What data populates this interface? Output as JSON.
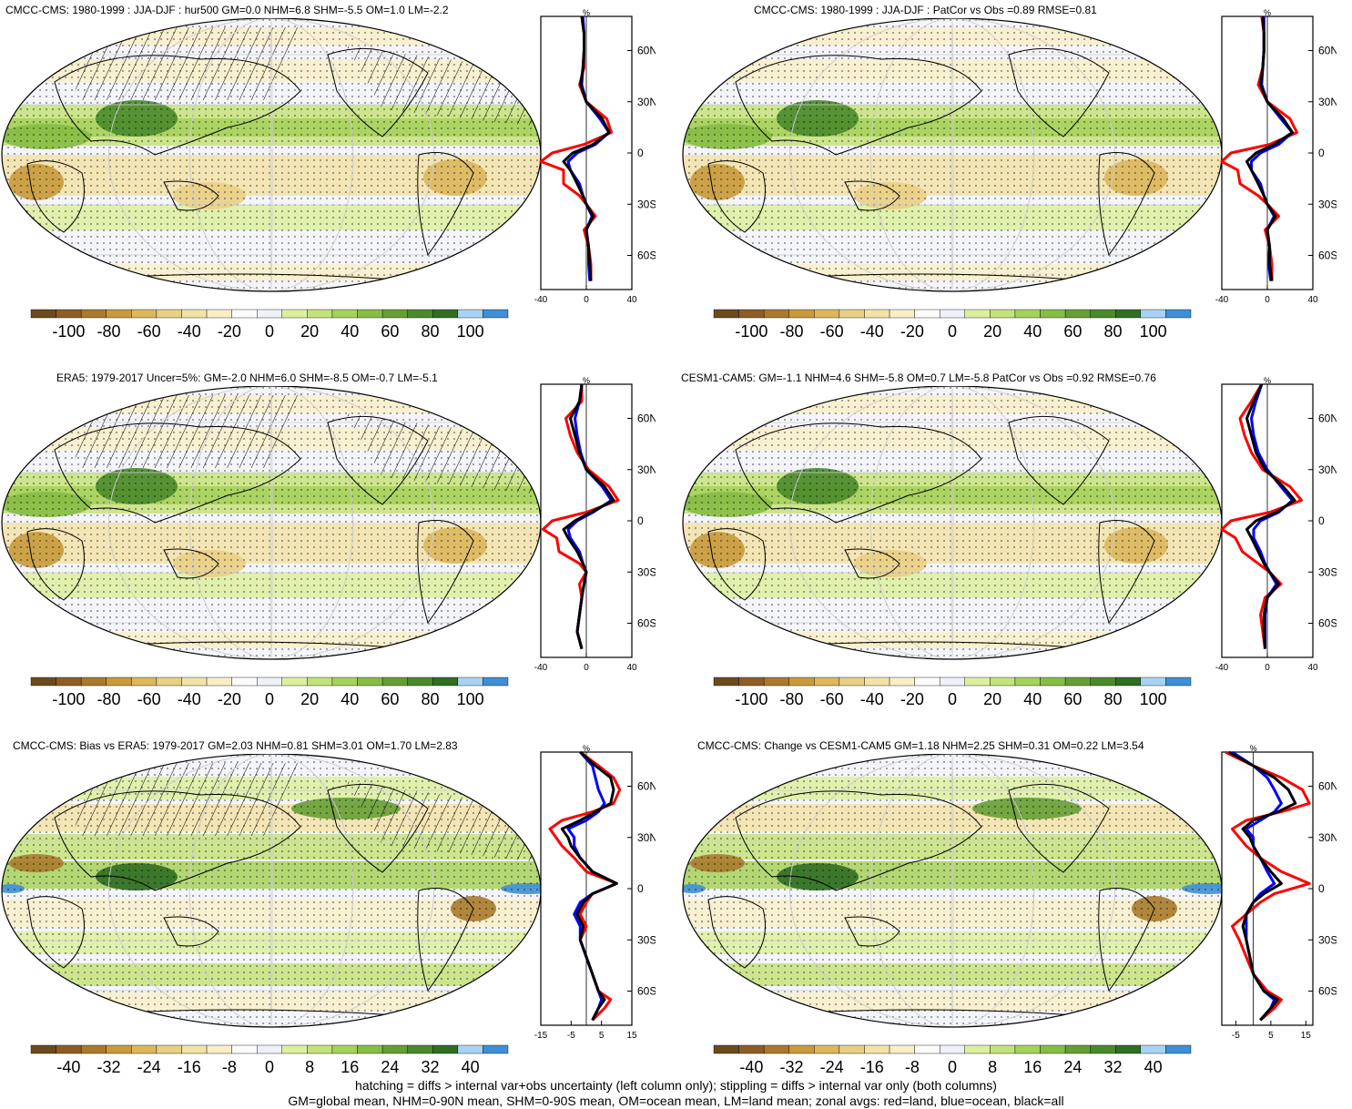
{
  "panels": [
    {
      "id": "p1",
      "title": "CMCC-CMS: 1980-1999 : JJA-DJF : hur500 GM=0.0 NHM=6.8 SHM=-5.5 OM=1.0 LM=-2.2",
      "hatch": true,
      "cbar_labels": [
        "-100",
        "-80",
        "-60",
        "-40",
        "-20",
        "0",
        "20",
        "40",
        "60",
        "80",
        "100"
      ],
      "zonal_xticks": [
        "-40",
        "0",
        "40"
      ],
      "zonal_xlim": [
        -40,
        40
      ]
    },
    {
      "id": "p2",
      "title": "CMCC-CMS: 1980-1999 : JJA-DJF : PatCor vs Obs =0.89 RMSE=0.81",
      "hatch": false,
      "cbar_labels": [
        "-100",
        "-80",
        "-60",
        "-40",
        "-20",
        "0",
        "20",
        "40",
        "60",
        "80",
        "100"
      ],
      "zonal_xticks": [
        "-40",
        "0",
        "40"
      ],
      "zonal_xlim": [
        -40,
        40
      ]
    },
    {
      "id": "p3",
      "title": "ERA5: 1979-2017 Uncer=5%: GM=-2.0 NHM=6.0 SHM=-8.5 OM=-0.7 LM=-5.1",
      "hatch": true,
      "cbar_labels": [
        "-100",
        "-80",
        "-60",
        "-40",
        "-20",
        "0",
        "20",
        "40",
        "60",
        "80",
        "100"
      ],
      "zonal_xticks": [
        "-40",
        "0",
        "40"
      ],
      "zonal_xlim": [
        -40,
        40
      ]
    },
    {
      "id": "p4",
      "title": "CESM1-CAM5: GM=-1.1 NHM=4.6 SHM=-5.8 OM=0.7 LM=-5.8 PatCor vs Obs =0.92 RMSE=0.76",
      "hatch": false,
      "cbar_labels": [
        "-100",
        "-80",
        "-60",
        "-40",
        "-20",
        "0",
        "20",
        "40",
        "60",
        "80",
        "100"
      ],
      "zonal_xticks": [
        "-40",
        "0",
        "40"
      ],
      "zonal_xlim": [
        -40,
        40
      ]
    },
    {
      "id": "p5",
      "title": "CMCC-CMS: Bias vs ERA5: 1979-2017 GM=2.03 NHM=0.81 SHM=3.01 OM=1.70 LM=2.83",
      "hatch": true,
      "cbar_labels": [
        "-40",
        "-32",
        "-24",
        "-16",
        "-8",
        "0",
        "8",
        "16",
        "24",
        "32",
        "40"
      ],
      "zonal_xticks": [
        "-15",
        "-5",
        "5",
        "15"
      ],
      "zonal_xlim": [
        -15,
        15
      ]
    },
    {
      "id": "p6",
      "title": "CMCC-CMS: Change vs CESM1-CAM5 GM=1.18 NHM=2.25 SHM=0.31 OM=0.22 LM=3.54",
      "hatch": false,
      "cbar_labels": [
        "-40",
        "-32",
        "-24",
        "-16",
        "-8",
        "0",
        "8",
        "16",
        "24",
        "32",
        "40"
      ],
      "zonal_xticks": [
        "-5",
        "5",
        "15"
      ],
      "zonal_xlim": [
        -9,
        17
      ]
    }
  ],
  "zonal_unit": "%",
  "lat_ticks": [
    "60N",
    "30N",
    "0",
    "30S",
    "60S"
  ],
  "colors": {
    "land": "#ff0000",
    "ocean": "#0000ff",
    "all": "#000000"
  },
  "colorbar": [
    "#6b4a1e",
    "#8c5e26",
    "#a97a2c",
    "#c89a3c",
    "#dcb75c",
    "#e9cf85",
    "#f2e2a8",
    "#f8efc8",
    "#fbfbfb",
    "#eef1f8",
    "#dcef9f",
    "#c4e27a",
    "#a6d15b",
    "#86bd45",
    "#669e34",
    "#4a8a2c",
    "#2f6e24",
    "#a9d2f2",
    "#3f8fd6"
  ],
  "chart_data": [
    {
      "type": "line",
      "title": "CMCC-CMS: 1980-1999 : JJA-DJF : hur500 GM=0.0 NHM=6.8 SHM=-5.5 OM=1.0 LM=-2.2",
      "xlabel": "%",
      "xlim": [
        -40,
        40
      ],
      "ylim": [
        -80,
        80
      ],
      "series": [
        {
          "name": "land",
          "lat": [
            80,
            70,
            60,
            50,
            40,
            30,
            20,
            12,
            5,
            0,
            -5,
            -10,
            -18,
            -25,
            -30,
            -37,
            -45,
            -55,
            -65,
            -75
          ],
          "values": [
            -4,
            -2,
            -2,
            -2,
            -6,
            0,
            18,
            22,
            -2,
            -30,
            -40,
            -20,
            -20,
            -6,
            0,
            8,
            -2,
            2,
            4,
            4
          ]
        },
        {
          "name": "ocean",
          "lat": [
            80,
            70,
            60,
            50,
            40,
            30,
            20,
            12,
            5,
            0,
            -5,
            -10,
            -18,
            -25,
            -30,
            -37,
            -45,
            -55,
            -65,
            -75
          ],
          "values": [
            -3,
            -2,
            -2,
            -3,
            -4,
            0,
            12,
            20,
            8,
            -8,
            -16,
            -14,
            -6,
            -3,
            0,
            5,
            0,
            2,
            2,
            3
          ]
        },
        {
          "name": "all",
          "lat": [
            80,
            70,
            60,
            50,
            40,
            30,
            20,
            12,
            5,
            0,
            -5,
            -10,
            -18,
            -25,
            -30,
            -37,
            -45,
            -55,
            -65,
            -75
          ],
          "values": [
            -4,
            -2,
            -2,
            -3,
            -5,
            0,
            14,
            20,
            6,
            -12,
            -20,
            -14,
            -8,
            -3,
            0,
            6,
            0,
            2,
            3,
            4
          ]
        }
      ]
    },
    {
      "type": "line",
      "title": "CMCC-CMS: 1980-1999 : JJA-DJF : PatCor vs Obs =0.89 RMSE=0.81",
      "xlabel": "%",
      "xlim": [
        -40,
        40
      ],
      "ylim": [
        -80,
        80
      ],
      "series": [
        {
          "name": "land",
          "lat": [
            80,
            70,
            60,
            50,
            40,
            30,
            20,
            12,
            5,
            0,
            -5,
            -10,
            -18,
            -25,
            -30,
            -37,
            -45,
            -55,
            -65,
            -75
          ],
          "values": [
            -5,
            -3,
            -3,
            -4,
            -8,
            0,
            20,
            26,
            2,
            -32,
            -40,
            -26,
            -24,
            -8,
            0,
            10,
            -2,
            2,
            4,
            4
          ]
        },
        {
          "name": "ocean",
          "lat": [
            80,
            70,
            60,
            50,
            40,
            30,
            20,
            12,
            5,
            0,
            -5,
            -10,
            -18,
            -25,
            -30,
            -37,
            -45,
            -55,
            -65,
            -75
          ],
          "values": [
            -3,
            -3,
            -3,
            -4,
            -5,
            0,
            12,
            22,
            10,
            -6,
            -14,
            -14,
            -6,
            -3,
            0,
            6,
            0,
            2,
            1,
            3
          ]
        },
        {
          "name": "all",
          "lat": [
            80,
            70,
            60,
            50,
            40,
            30,
            20,
            12,
            5,
            0,
            -5,
            -10,
            -18,
            -25,
            -30,
            -37,
            -45,
            -55,
            -65,
            -75
          ],
          "values": [
            -4,
            -3,
            -3,
            -4,
            -6,
            0,
            14,
            22,
            6,
            -10,
            -18,
            -14,
            -8,
            -3,
            0,
            7,
            0,
            2,
            2,
            4
          ]
        }
      ]
    },
    {
      "type": "line",
      "title": "ERA5: 1979-2017 Uncer=5%: GM=-2.0 NHM=6.0 SHM=-8.5 OM=-0.7 LM=-5.1",
      "xlabel": "%",
      "xlim": [
        -40,
        40
      ],
      "ylim": [
        -80,
        80
      ],
      "series": [
        {
          "name": "land",
          "lat": [
            80,
            70,
            60,
            50,
            40,
            30,
            20,
            12,
            5,
            0,
            -5,
            -10,
            -18,
            -25,
            -30,
            -37,
            -45,
            -55,
            -65,
            -75
          ],
          "values": [
            -4,
            -4,
            -18,
            -14,
            -8,
            2,
            20,
            28,
            0,
            -30,
            -38,
            -26,
            -24,
            -6,
            0,
            -6,
            -4,
            -6,
            -8,
            -4
          ]
        },
        {
          "name": "ocean",
          "lat": [
            80,
            70,
            60,
            50,
            40,
            30,
            20,
            12,
            5,
            0,
            -5,
            -10,
            -18,
            -25,
            -30,
            -37,
            -45,
            -55,
            -65,
            -75
          ],
          "values": [
            -4,
            -6,
            -10,
            -8,
            -5,
            0,
            14,
            22,
            6,
            -8,
            -16,
            -14,
            -6,
            -3,
            0,
            -2,
            -4,
            -6,
            -8,
            -4
          ]
        },
        {
          "name": "all",
          "lat": [
            80,
            70,
            60,
            50,
            40,
            30,
            20,
            12,
            5,
            0,
            -5,
            -10,
            -18,
            -25,
            -30,
            -37,
            -45,
            -55,
            -65,
            -75
          ],
          "values": [
            -4,
            -6,
            -14,
            -10,
            -6,
            0,
            16,
            24,
            4,
            -10,
            -20,
            -16,
            -8,
            -3,
            0,
            -2,
            -4,
            -6,
            -8,
            -4
          ]
        }
      ]
    },
    {
      "type": "line",
      "title": "CESM1-CAM5: GM=-1.1 NHM=4.6 SHM=-5.8 OM=0.7 LM=-5.8 PatCor vs Obs =0.92 RMSE=0.76",
      "xlabel": "%",
      "xlim": [
        -40,
        40
      ],
      "ylim": [
        -80,
        80
      ],
      "series": [
        {
          "name": "land",
          "lat": [
            80,
            70,
            60,
            50,
            40,
            30,
            20,
            12,
            5,
            0,
            -5,
            -10,
            -18,
            -25,
            -30,
            -37,
            -45,
            -55,
            -65,
            -75
          ],
          "values": [
            -5,
            -14,
            -24,
            -20,
            -14,
            -4,
            20,
            30,
            2,
            -32,
            -40,
            -28,
            -22,
            -8,
            2,
            12,
            -2,
            -6,
            -4,
            -2
          ]
        },
        {
          "name": "ocean",
          "lat": [
            80,
            70,
            60,
            50,
            40,
            30,
            20,
            12,
            5,
            0,
            -5,
            -10,
            -18,
            -25,
            -30,
            -37,
            -45,
            -55,
            -65,
            -75
          ],
          "values": [
            -5,
            -10,
            -14,
            -12,
            -8,
            0,
            12,
            22,
            10,
            -6,
            -12,
            -12,
            -6,
            -2,
            2,
            8,
            0,
            -2,
            -2,
            -2
          ]
        },
        {
          "name": "all",
          "lat": [
            80,
            70,
            60,
            50,
            40,
            30,
            20,
            12,
            5,
            0,
            -5,
            -10,
            -18,
            -25,
            -30,
            -37,
            -45,
            -55,
            -65,
            -75
          ],
          "values": [
            -5,
            -12,
            -18,
            -14,
            -10,
            -2,
            14,
            24,
            8,
            -10,
            -18,
            -14,
            -8,
            -3,
            2,
            10,
            0,
            -3,
            -3,
            -2
          ]
        }
      ]
    },
    {
      "type": "line",
      "title": "CMCC-CMS: Bias vs ERA5: 1979-2017 GM=2.03 NHM=0.81 SHM=3.01 OM=1.70 LM=2.83",
      "xlabel": "%",
      "xlim": [
        -15,
        15
      ],
      "ylim": [
        -80,
        80
      ],
      "series": [
        {
          "name": "land",
          "lat": [
            80,
            72,
            65,
            58,
            50,
            45,
            40,
            35,
            30,
            25,
            18,
            10,
            3,
            -3,
            -8,
            -15,
            -22,
            -30,
            -40,
            -50,
            -60,
            -65,
            -70,
            -77
          ],
          "values": [
            -2,
            4,
            9,
            11,
            9,
            2,
            -8,
            -12,
            -10,
            -8,
            -4,
            0,
            10,
            2,
            0,
            -2,
            0,
            -2,
            0,
            2,
            4,
            8,
            6,
            2
          ]
        },
        {
          "name": "ocean",
          "lat": [
            80,
            72,
            65,
            58,
            50,
            45,
            40,
            35,
            30,
            25,
            18,
            10,
            3,
            -3,
            -8,
            -15,
            -22,
            -30,
            -40,
            -50,
            -60,
            -65,
            -70,
            -77
          ],
          "values": [
            -2,
            2,
            3,
            4,
            6,
            4,
            0,
            -6,
            -4,
            -4,
            -2,
            2,
            10,
            2,
            -2,
            -4,
            -2,
            -2,
            0,
            2,
            4,
            5,
            4,
            2
          ]
        },
        {
          "name": "all",
          "lat": [
            80,
            72,
            65,
            58,
            50,
            45,
            40,
            35,
            30,
            25,
            18,
            10,
            3,
            -3,
            -8,
            -15,
            -22,
            -30,
            -40,
            -50,
            -60,
            -65,
            -70,
            -77
          ],
          "values": [
            -2,
            3,
            8,
            9,
            8,
            3,
            -2,
            -8,
            -6,
            -5,
            -2,
            2,
            10,
            2,
            -1,
            -3,
            -1,
            -2,
            0,
            2,
            4,
            6,
            4,
            2
          ]
        }
      ]
    },
    {
      "type": "line",
      "title": "CMCC-CMS: Change vs CESM1-CAM5 GM=1.18 NHM=2.25 SHM=0.31 OM=0.22 LM=3.54",
      "xlabel": "%",
      "xlim": [
        -9,
        17
      ],
      "ylim": [
        -80,
        80
      ],
      "series": [
        {
          "name": "land",
          "lat": [
            80,
            72,
            65,
            58,
            50,
            45,
            40,
            35,
            30,
            25,
            18,
            10,
            3,
            -3,
            -8,
            -15,
            -22,
            -30,
            -40,
            -50,
            -60,
            -65,
            -70,
            -77
          ],
          "values": [
            -8,
            0,
            8,
            14,
            16,
            8,
            -2,
            -6,
            -4,
            -2,
            2,
            8,
            16,
            6,
            2,
            -2,
            -6,
            -4,
            -2,
            0,
            4,
            8,
            6,
            2
          ]
        },
        {
          "name": "ocean",
          "lat": [
            80,
            72,
            65,
            58,
            50,
            45,
            40,
            35,
            30,
            25,
            18,
            10,
            3,
            -3,
            -8,
            -15,
            -22,
            -30,
            -40,
            -50,
            -60,
            -65,
            -70,
            -77
          ],
          "values": [
            -6,
            0,
            4,
            6,
            8,
            6,
            2,
            -2,
            0,
            0,
            2,
            4,
            6,
            2,
            0,
            -2,
            -2,
            -2,
            -1,
            0,
            3,
            6,
            5,
            2
          ]
        },
        {
          "name": "all",
          "lat": [
            80,
            72,
            65,
            58,
            50,
            45,
            40,
            35,
            30,
            25,
            18,
            10,
            3,
            -3,
            -8,
            -15,
            -22,
            -30,
            -40,
            -50,
            -60,
            -65,
            -70,
            -77
          ],
          "values": [
            -7,
            0,
            6,
            10,
            12,
            7,
            0,
            -3,
            -1,
            0,
            2,
            5,
            8,
            3,
            0,
            -2,
            -3,
            -2,
            -1,
            0,
            3,
            7,
            5,
            2
          ]
        }
      ]
    }
  ],
  "footer": {
    "line1": "hatching = diffs > internal var+obs uncertainty (left column only); stippling = diffs > internal var only (both columns)",
    "line2": "GM=global mean, NHM=0-90N mean, SHM=0-90S mean, OM=ocean mean, LM=land mean; zonal avgs: red=land, blue=ocean, black=all"
  }
}
